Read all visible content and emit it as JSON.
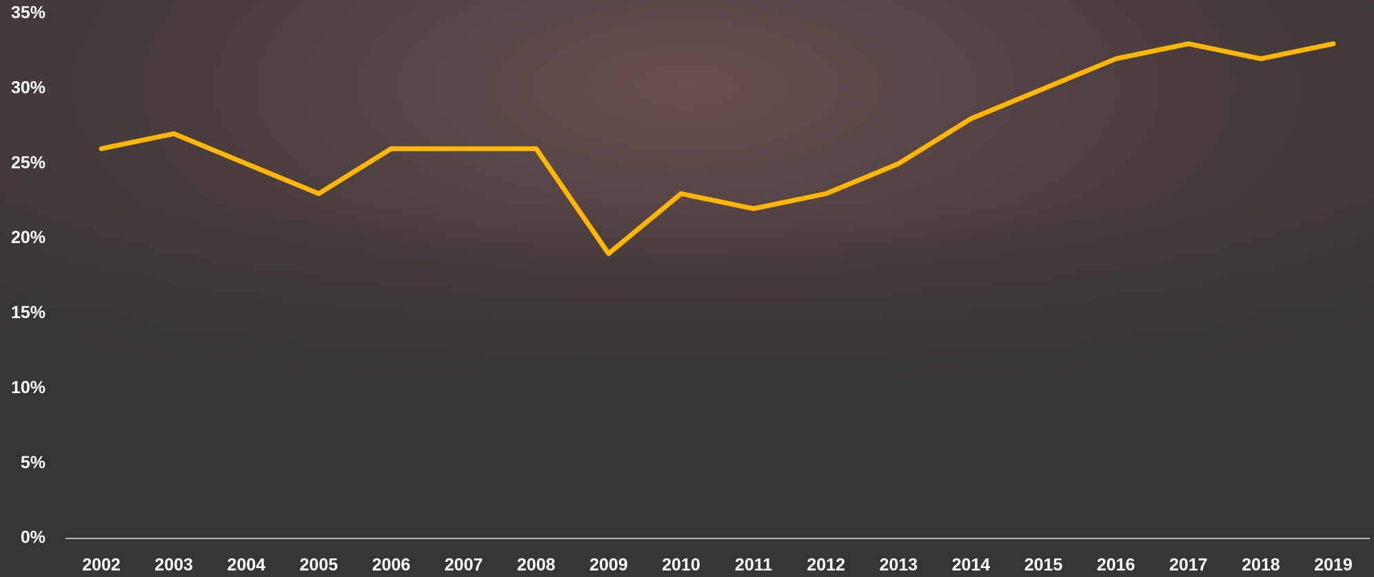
{
  "chart_data": {
    "type": "line",
    "categories": [
      "2002",
      "2003",
      "2004",
      "2005",
      "2006",
      "2007",
      "2008",
      "2009",
      "2010",
      "2011",
      "2012",
      "2013",
      "2014",
      "2015",
      "2016",
      "2017",
      "2018",
      "2019"
    ],
    "series": [
      {
        "color": "#ffb703",
        "values": [
          26,
          27,
          25,
          23,
          26,
          26,
          26,
          19,
          23,
          22,
          23,
          25,
          28,
          30,
          32,
          33,
          32,
          33
        ]
      }
    ],
    "ylim": [
      0,
      35
    ],
    "yticks": [
      {
        "value": 0,
        "label": "0%"
      },
      {
        "value": 5,
        "label": "5%"
      },
      {
        "value": 10,
        "label": "10%"
      },
      {
        "value": 15,
        "label": "15%"
      },
      {
        "value": 20,
        "label": "20%"
      },
      {
        "value": 25,
        "label": "25%"
      },
      {
        "value": 30,
        "label": "30%"
      },
      {
        "value": 35,
        "label": "35%"
      }
    ],
    "grid": false
  }
}
